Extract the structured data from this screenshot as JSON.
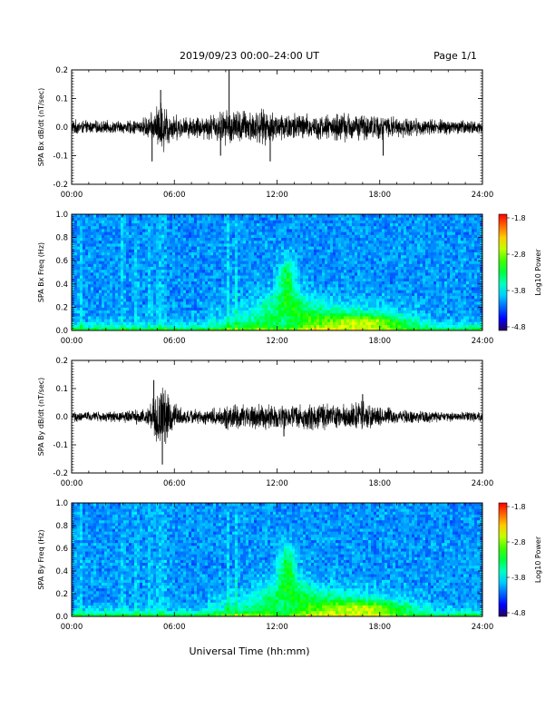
{
  "header": {
    "title": "2019/09/23  00:00–24:00 UT",
    "page": "Page 1/1"
  },
  "xaxis": {
    "label": "Universal Time (hh:mm)",
    "ticks": [
      "00:00",
      "06:00",
      "12:00",
      "18:00",
      "24:00"
    ],
    "range_hours": [
      0,
      24
    ]
  },
  "chart_data": [
    {
      "type": "line",
      "ylabel": "SPA Bx dB/dt (nT/sec)",
      "ylim": [
        -0.2,
        0.2
      ],
      "yticks": [
        "0.2",
        "0.1",
        "0.0",
        "-0.1",
        "-0.2"
      ],
      "envelope": [
        {
          "t": 0,
          "amp": 0.03
        },
        {
          "t": 1,
          "amp": 0.025
        },
        {
          "t": 2,
          "amp": 0.025
        },
        {
          "t": 3,
          "amp": 0.025
        },
        {
          "t": 4,
          "amp": 0.03
        },
        {
          "t": 4.8,
          "amp": 0.06
        },
        {
          "t": 5.1,
          "amp": 0.1
        },
        {
          "t": 5.4,
          "amp": 0.1
        },
        {
          "t": 5.8,
          "amp": 0.06
        },
        {
          "t": 6.5,
          "amp": 0.04
        },
        {
          "t": 8,
          "amp": 0.05
        },
        {
          "t": 9,
          "amp": 0.07
        },
        {
          "t": 10,
          "amp": 0.07
        },
        {
          "t": 11,
          "amp": 0.07
        },
        {
          "t": 12,
          "amp": 0.06
        },
        {
          "t": 13,
          "amp": 0.06
        },
        {
          "t": 14,
          "amp": 0.05
        },
        {
          "t": 15,
          "amp": 0.05
        },
        {
          "t": 16,
          "amp": 0.06
        },
        {
          "t": 17,
          "amp": 0.05
        },
        {
          "t": 18,
          "amp": 0.05
        },
        {
          "t": 19,
          "amp": 0.04
        },
        {
          "t": 20,
          "amp": 0.035
        },
        {
          "t": 22,
          "amp": 0.03
        },
        {
          "t": 24,
          "amp": 0.025
        }
      ],
      "spikes": [
        {
          "t": 9.2,
          "v": 0.2
        },
        {
          "t": 5.2,
          "v": 0.13
        },
        {
          "t": 4.7,
          "v": -0.12
        },
        {
          "t": 11.6,
          "v": -0.12
        },
        {
          "t": 18.2,
          "v": -0.1
        },
        {
          "t": 8.7,
          "v": -0.1
        }
      ]
    },
    {
      "type": "heatmap",
      "ylabel": "SPA Bx Freq (Hz)",
      "ylim": [
        0.0,
        1.0
      ],
      "yticks": [
        "1.0",
        "0.8",
        "0.6",
        "0.4",
        "0.2",
        "0.0"
      ],
      "colorbar_label": "Log10 Power",
      "colorbar_ticks": [
        "-1.8",
        "-2.8",
        "-3.8",
        "-4.8"
      ],
      "clim": [
        -4.8,
        -1.8
      ]
    },
    {
      "type": "line",
      "ylabel": "SPA By dB/dt (nT/sec)",
      "ylim": [
        -0.2,
        0.2
      ],
      "yticks": [
        "0.2",
        "0.1",
        "0.0",
        "-0.1",
        "-0.2"
      ],
      "envelope": [
        {
          "t": 0,
          "amp": 0.02
        },
        {
          "t": 1,
          "amp": 0.02
        },
        {
          "t": 2,
          "amp": 0.02
        },
        {
          "t": 3,
          "amp": 0.025
        },
        {
          "t": 4,
          "amp": 0.03
        },
        {
          "t": 4.6,
          "amp": 0.05
        },
        {
          "t": 5.0,
          "amp": 0.12
        },
        {
          "t": 5.4,
          "amp": 0.12
        },
        {
          "t": 5.8,
          "amp": 0.07
        },
        {
          "t": 6.5,
          "amp": 0.03
        },
        {
          "t": 8,
          "amp": 0.03
        },
        {
          "t": 9,
          "amp": 0.05
        },
        {
          "t": 10,
          "amp": 0.05
        },
        {
          "t": 11,
          "amp": 0.05
        },
        {
          "t": 12,
          "amp": 0.05
        },
        {
          "t": 13,
          "amp": 0.05
        },
        {
          "t": 14,
          "amp": 0.05
        },
        {
          "t": 15,
          "amp": 0.05
        },
        {
          "t": 16,
          "amp": 0.05
        },
        {
          "t": 17,
          "amp": 0.06
        },
        {
          "t": 18,
          "amp": 0.04
        },
        {
          "t": 19,
          "amp": 0.03
        },
        {
          "t": 20,
          "amp": 0.025
        },
        {
          "t": 22,
          "amp": 0.02
        },
        {
          "t": 24,
          "amp": 0.02
        }
      ],
      "spikes": [
        {
          "t": 5.3,
          "v": -0.17
        },
        {
          "t": 4.8,
          "v": 0.13
        },
        {
          "t": 17.0,
          "v": 0.08
        },
        {
          "t": 12.4,
          "v": -0.07
        }
      ]
    },
    {
      "type": "heatmap",
      "ylabel": "SPA By Freq (Hz)",
      "ylim": [
        0.0,
        1.0
      ],
      "yticks": [
        "1.0",
        "0.8",
        "0.6",
        "0.4",
        "0.2",
        "0.0"
      ],
      "colorbar_label": "Log10 Power",
      "colorbar_ticks": [
        "-1.8",
        "-2.8",
        "-3.8",
        "-4.8"
      ],
      "clim": [
        -4.8,
        -1.8
      ]
    }
  ]
}
